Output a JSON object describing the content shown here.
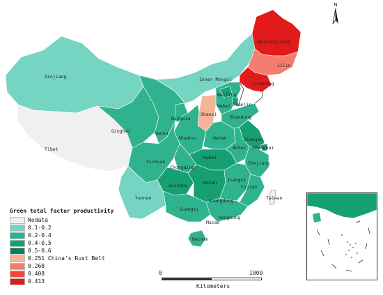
{
  "north_label": "N",
  "legend": {
    "title": "Green total factor productivity",
    "items": [
      {
        "label": "Nodata",
        "color": "#f0f0f0"
      },
      {
        "label": "0.1-0.2",
        "color": "#76d4c3"
      },
      {
        "label": "0.2-0.4",
        "color": "#2fb38e"
      },
      {
        "label": "0.4-0.5",
        "color": "#16a072"
      },
      {
        "label": "0.5-0.6",
        "color": "#0f7f4f"
      },
      {
        "label": "0.251 China's Rust Belt",
        "color": "#f4b497"
      },
      {
        "label": "0.268",
        "color": "#f57d6d"
      },
      {
        "label": "0.408",
        "color": "#f2463c"
      },
      {
        "label": "0.413",
        "color": "#e31a1a"
      }
    ]
  },
  "scale": {
    "start": "0",
    "end": "1000",
    "unit": "Kilometers"
  },
  "provinces": [
    {
      "name": "Xinjiang",
      "category": "0.1-0.2"
    },
    {
      "name": "Tibet",
      "category": "Nodata"
    },
    {
      "name": "Qinghai",
      "category": "0.2-0.4"
    },
    {
      "name": "Gansu",
      "category": "0.2-0.4"
    },
    {
      "name": "Inner Mongol",
      "category": "0.1-0.2"
    },
    {
      "name": "Ningxia",
      "category": "0.2-0.4"
    },
    {
      "name": "Heilongjiang",
      "category": "0.413"
    },
    {
      "name": "Jilin",
      "category": "0.268"
    },
    {
      "name": "Liaoning",
      "category": "0.413"
    },
    {
      "name": "Beijing",
      "category": "0.4-0.5"
    },
    {
      "name": "Tianjin",
      "category": "0.4-0.5"
    },
    {
      "name": "Hebei",
      "category": "0.2-0.4"
    },
    {
      "name": "Shanxi",
      "category": "0.251 China's Rust Belt"
    },
    {
      "name": "Shaanxi",
      "category": "0.2-0.4"
    },
    {
      "name": "Shandong",
      "category": "0.2-0.4"
    },
    {
      "name": "Henan",
      "category": "0.2-0.4"
    },
    {
      "name": "Jiangsu",
      "category": "0.4-0.5"
    },
    {
      "name": "Anhui",
      "category": "0.2-0.4"
    },
    {
      "name": "Shanghai",
      "category": "0.4-0.5"
    },
    {
      "name": "Zhejiang",
      "category": "0.2-0.4"
    },
    {
      "name": "Sichuan",
      "category": "0.2-0.4"
    },
    {
      "name": "Chongqing",
      "category": "0.2-0.4"
    },
    {
      "name": "Hubei",
      "category": "0.4-0.5"
    },
    {
      "name": "Hunan",
      "category": "0.4-0.5"
    },
    {
      "name": "Jiangxi",
      "category": "0.2-0.4"
    },
    {
      "name": "Fujian",
      "category": "0.2-0.4"
    },
    {
      "name": "Guizhou",
      "category": "0.4-0.5"
    },
    {
      "name": "Yunnan",
      "category": "0.1-0.2"
    },
    {
      "name": "Guangxi",
      "category": "0.2-0.4"
    },
    {
      "name": "Guangdong",
      "category": "0.2-0.4"
    },
    {
      "name": "Hainan",
      "category": "0.2-0.4"
    },
    {
      "name": "Taiwan",
      "category": "Nodata"
    },
    {
      "name": "Hongkong",
      "category": "Nodata"
    },
    {
      "name": "Macao",
      "category": "Nodata"
    }
  ],
  "map_labels": {
    "xinjiang": "Xinjiang",
    "tibet": "Tibet",
    "qinghai": "Qinghai",
    "gansu": "Gansu",
    "inner_mongol": "Inner Mongol",
    "ningxia": "Ningxia",
    "heilongjiang": "Heilongjiang",
    "jilin": "Jilin",
    "liaoning": "Liaoning",
    "beijing": "Beijing",
    "tianjin": "Tianjin",
    "hebei": "Hebei",
    "shanxi": "Shanxi",
    "shaanxi": "Shaanxi",
    "shandong": "Shandong",
    "henan": "Henan",
    "jiangsu": "Jiangsu",
    "anhui": "Anhui",
    "shanghai": "Shanghai",
    "zhejiang": "Zhejiang",
    "sichuan": "Sichuan",
    "chongqing": "Chongqing",
    "hubei": "Hubei",
    "hunan": "Hunan",
    "jiangxi": "Jiangxi",
    "fujian": "Fujian",
    "guizhou": "Guizhou",
    "yunnan": "Yunnan",
    "guangxi": "Guangxi",
    "guangdong": "Guangdong",
    "hainan": "Hainan",
    "taiwan": "Taiwan",
    "hongkong": "Hongkong",
    "macao": "Macao"
  }
}
